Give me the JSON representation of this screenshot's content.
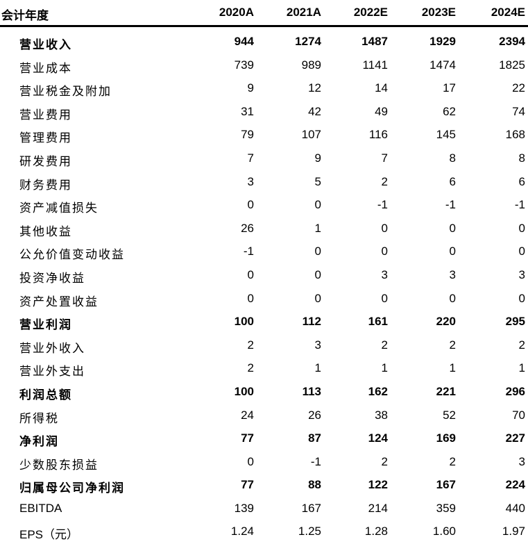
{
  "table": {
    "header": {
      "label": "会计年度",
      "years": [
        "2020A",
        "2021A",
        "2022E",
        "2023E",
        "2024E"
      ]
    },
    "rows": [
      {
        "label": "营业收入",
        "bold": true,
        "values": [
          "944",
          "1274",
          "1487",
          "1929",
          "2394"
        ]
      },
      {
        "label": "营业成本",
        "bold": false,
        "values": [
          "739",
          "989",
          "1141",
          "1474",
          "1825"
        ]
      },
      {
        "label": "营业税金及附加",
        "bold": false,
        "values": [
          "9",
          "12",
          "14",
          "17",
          "22"
        ]
      },
      {
        "label": "营业费用",
        "bold": false,
        "values": [
          "31",
          "42",
          "49",
          "62",
          "74"
        ]
      },
      {
        "label": "管理费用",
        "bold": false,
        "values": [
          "79",
          "107",
          "116",
          "145",
          "168"
        ]
      },
      {
        "label": "研发费用",
        "bold": false,
        "values": [
          "7",
          "9",
          "7",
          "8",
          "8"
        ]
      },
      {
        "label": "财务费用",
        "bold": false,
        "values": [
          "3",
          "5",
          "2",
          "6",
          "6"
        ]
      },
      {
        "label": "资产减值损失",
        "bold": false,
        "values": [
          "0",
          "0",
          "-1",
          "-1",
          "-1"
        ]
      },
      {
        "label": "其他收益",
        "bold": false,
        "values": [
          "26",
          "1",
          "0",
          "0",
          "0"
        ]
      },
      {
        "label": "公允价值变动收益",
        "bold": false,
        "values": [
          "-1",
          "0",
          "0",
          "0",
          "0"
        ]
      },
      {
        "label": "投资净收益",
        "bold": false,
        "values": [
          "0",
          "0",
          "3",
          "3",
          "3"
        ]
      },
      {
        "label": "资产处置收益",
        "bold": false,
        "values": [
          "0",
          "0",
          "0",
          "0",
          "0"
        ]
      },
      {
        "label": "营业利润",
        "bold": true,
        "values": [
          "100",
          "112",
          "161",
          "220",
          "295"
        ]
      },
      {
        "label": "营业外收入",
        "bold": false,
        "values": [
          "2",
          "3",
          "2",
          "2",
          "2"
        ]
      },
      {
        "label": "营业外支出",
        "bold": false,
        "values": [
          "2",
          "1",
          "1",
          "1",
          "1"
        ]
      },
      {
        "label": "利润总额",
        "bold": true,
        "values": [
          "100",
          "113",
          "162",
          "221",
          "296"
        ]
      },
      {
        "label": "所得税",
        "bold": false,
        "values": [
          "24",
          "26",
          "38",
          "52",
          "70"
        ]
      },
      {
        "label": "净利润",
        "bold": true,
        "values": [
          "77",
          "87",
          "124",
          "169",
          "227"
        ]
      },
      {
        "label": "少数股东损益",
        "bold": false,
        "values": [
          "0",
          "-1",
          "2",
          "2",
          "3"
        ]
      },
      {
        "label": "归属母公司净利润",
        "bold": true,
        "values": [
          "77",
          "88",
          "122",
          "167",
          "224"
        ]
      },
      {
        "label": "EBITDA",
        "bold": false,
        "latin": true,
        "values": [
          "139",
          "167",
          "214",
          "359",
          "440"
        ]
      },
      {
        "label": "EPS（元）",
        "bold": false,
        "latin": true,
        "values": [
          "1.24",
          "1.25",
          "1.28",
          "1.60",
          "1.97"
        ]
      }
    ]
  }
}
